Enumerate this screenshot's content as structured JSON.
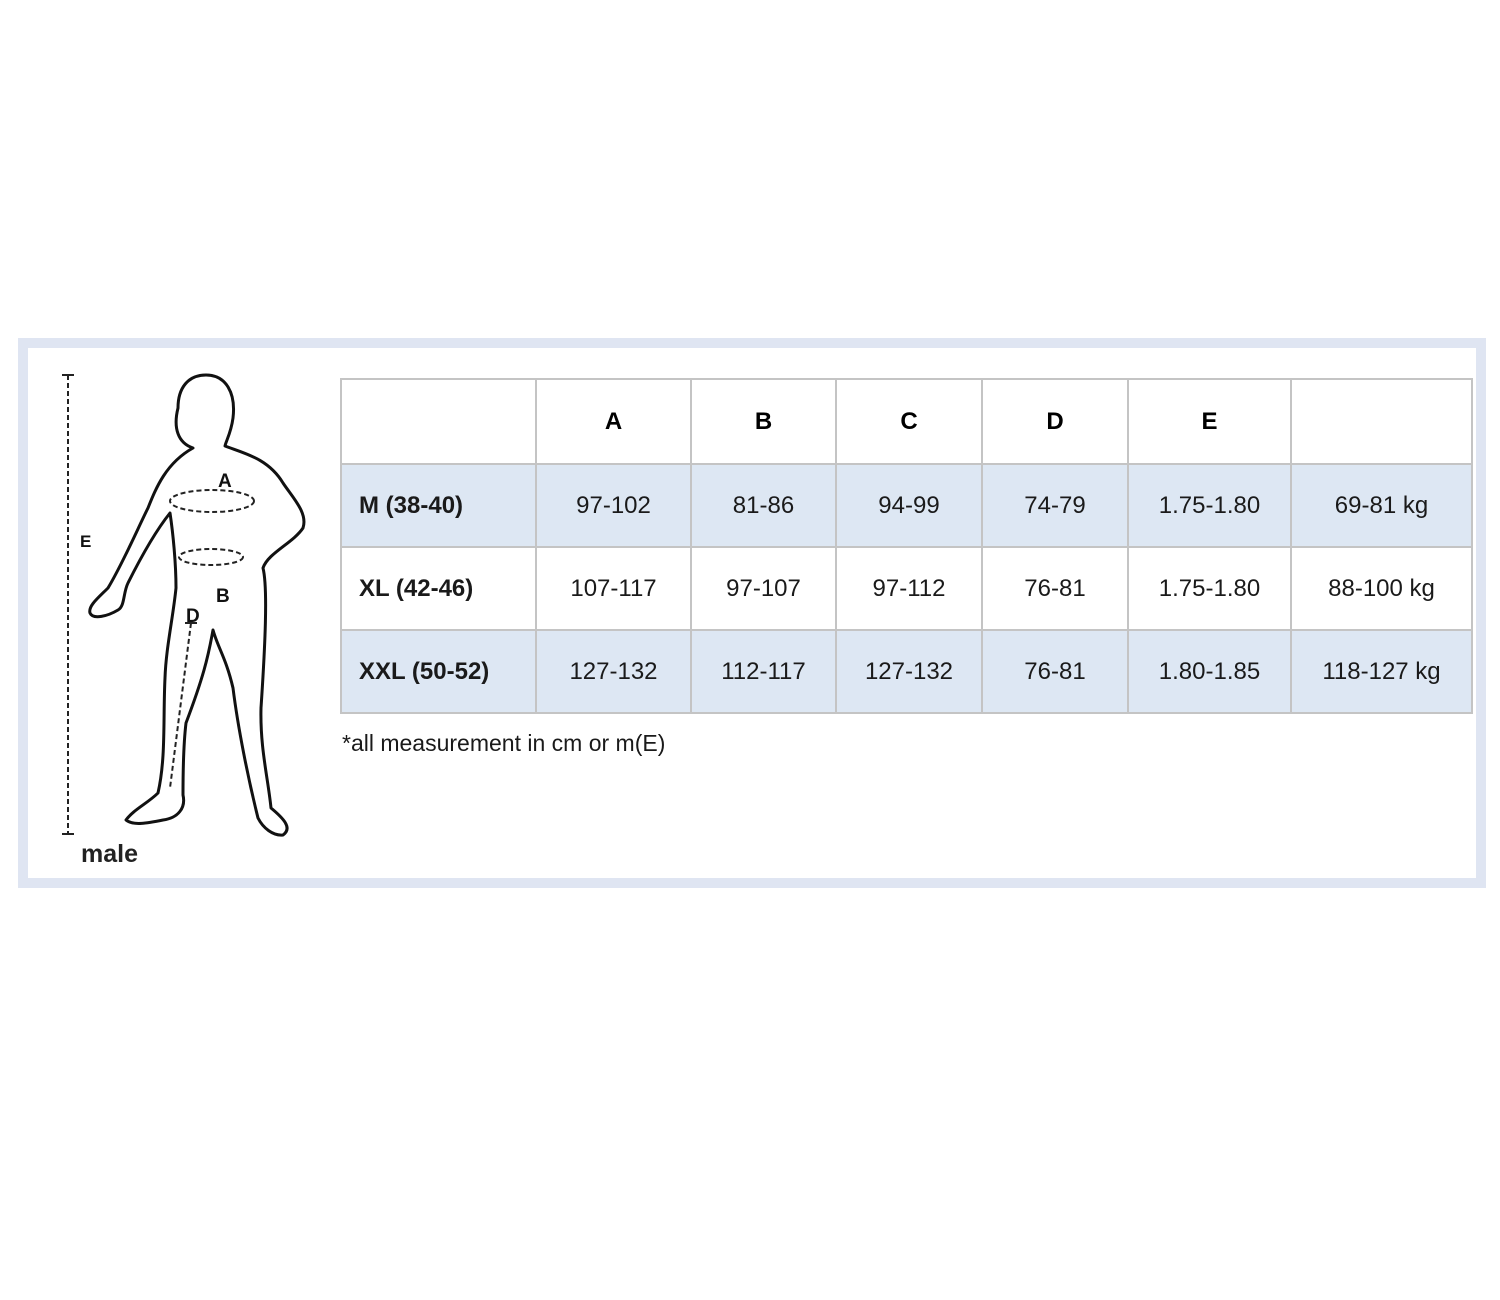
{
  "figure": {
    "gender_label": "male",
    "labels": {
      "a": "A",
      "b": "B",
      "d": "D",
      "e": "E"
    }
  },
  "table": {
    "headers": [
      "",
      "A",
      "B",
      "C",
      "D",
      "E",
      ""
    ],
    "rows": [
      {
        "size": "M (38-40)",
        "values": [
          "97-102",
          "81-86",
          "94-99",
          "74-79",
          "1.75-1.80",
          "69-81 kg"
        ]
      },
      {
        "size": "XL (42-46)",
        "values": [
          "107-117",
          "97-107",
          "97-112",
          "76-81",
          "1.75-1.80",
          "88-100 kg"
        ]
      },
      {
        "size": "XXL (50-52)",
        "values": [
          "127-132",
          "112-117",
          "127-132",
          "76-81",
          "1.80-1.85",
          "118-127 kg"
        ]
      }
    ]
  },
  "note": "*all measurement in cm or m(E)",
  "colors": {
    "frame": "#dfe5f2",
    "row_shade": "#dde7f3",
    "grid": "#c4c4c4"
  }
}
